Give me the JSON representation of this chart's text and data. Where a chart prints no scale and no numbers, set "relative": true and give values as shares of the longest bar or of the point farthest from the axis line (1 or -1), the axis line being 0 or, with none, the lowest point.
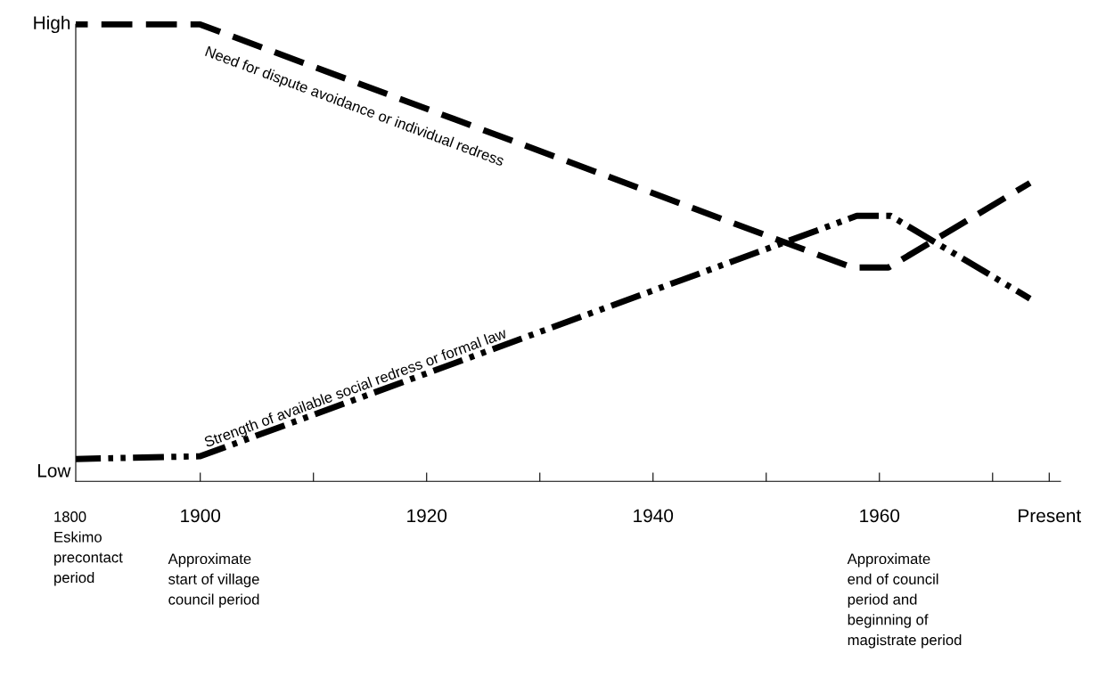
{
  "chart_data": {
    "type": "line",
    "relative": true,
    "series": [
      {
        "name": "Need for dispute avoidance or individual redress",
        "color": "#000000",
        "line_style": "dashed",
        "x": [
          1889,
          1900,
          1957.6,
          1960.8,
          1973.3
        ],
        "values": [
          1.0,
          1.0,
          0.468,
          0.468,
          0.653
        ]
      },
      {
        "name": "Strength of available social redress or formal law",
        "color": "#000000",
        "line_style": "dashdotdot",
        "x": [
          1889,
          1900,
          1958,
          1961,
          1973.3
        ],
        "values": [
          0.049,
          0.055,
          0.581,
          0.581,
          0.4
        ]
      }
    ],
    "xlim": [
      1889,
      1976
    ],
    "xticks": [
      1900,
      {
        "value": 1910,
        "label": null
      },
      1920,
      {
        "value": 1930,
        "label": null
      },
      1940,
      {
        "value": 1950,
        "label": null
      },
      1960,
      {
        "value": 1970,
        "label": null
      },
      {
        "value": 1975,
        "label": "Present"
      }
    ],
    "grid": false,
    "legend": false,
    "marker": "none",
    "annotations": [
      "High",
      "Low",
      "1800\nEskimo\nprecontact\nperiod",
      "Approximate\nstart of village\ncouncil period",
      "Approximate\nend of council\nperiod and\nbeginning of\nmagistrate period"
    ]
  }
}
